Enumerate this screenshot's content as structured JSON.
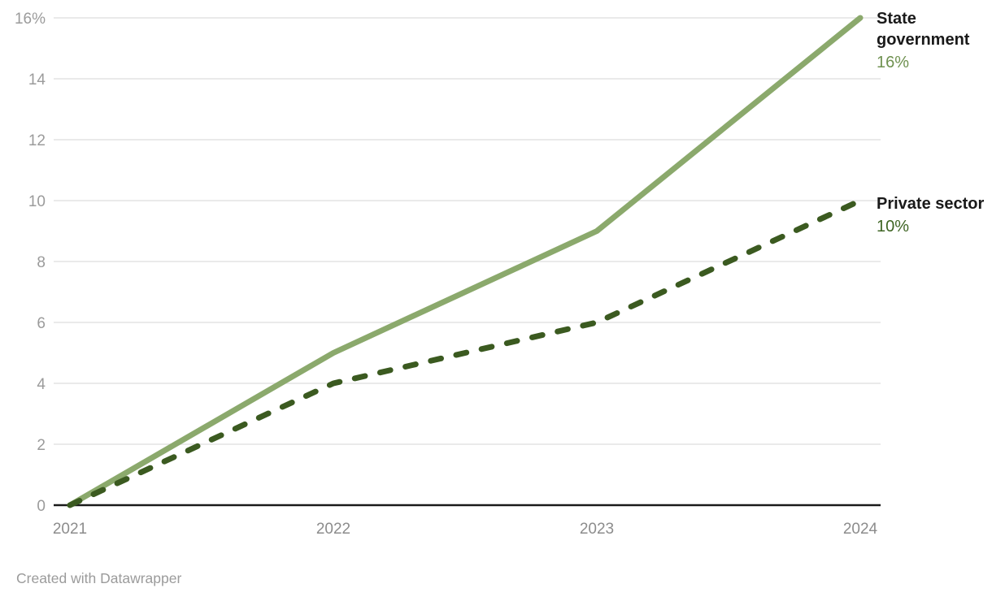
{
  "chart_data": {
    "type": "line",
    "title": "",
    "x": [
      "2021",
      "2022",
      "2023",
      "2024"
    ],
    "series": [
      {
        "name": "State government",
        "values": [
          0,
          5,
          9,
          16
        ],
        "color": "#8ba96c",
        "line_style": "solid",
        "end_value_label": "16%",
        "value_label_color": "#6f9150"
      },
      {
        "name": "Private sector",
        "values": [
          0,
          4,
          6,
          10
        ],
        "color": "#3b5a20",
        "line_style": "dashed",
        "end_value_label": "10%",
        "value_label_color": "#3f6524"
      }
    ],
    "ylim": [
      0,
      16
    ],
    "yticks": [
      0,
      2,
      4,
      6,
      8,
      10,
      12,
      14,
      16
    ],
    "ytick_labels": [
      "0",
      "2",
      "4",
      "6",
      "8",
      "10",
      "12",
      "14",
      "16%"
    ],
    "xtick_labels": [
      "2021",
      "2022",
      "2023",
      "2024"
    ],
    "grid": true,
    "legend_position": "right-end-of-line-labels"
  },
  "footer": {
    "attribution": "Created with Datawrapper"
  },
  "colors": {
    "background": "#ffffff",
    "grid": "#e4e4e4",
    "axis": "#1a1a1a",
    "y_tick_text": "#9b9b9b",
    "x_tick_text": "#8c8c8c",
    "series_label_text": "#1a1a1a",
    "attribution_text": "#9b9b9b"
  }
}
